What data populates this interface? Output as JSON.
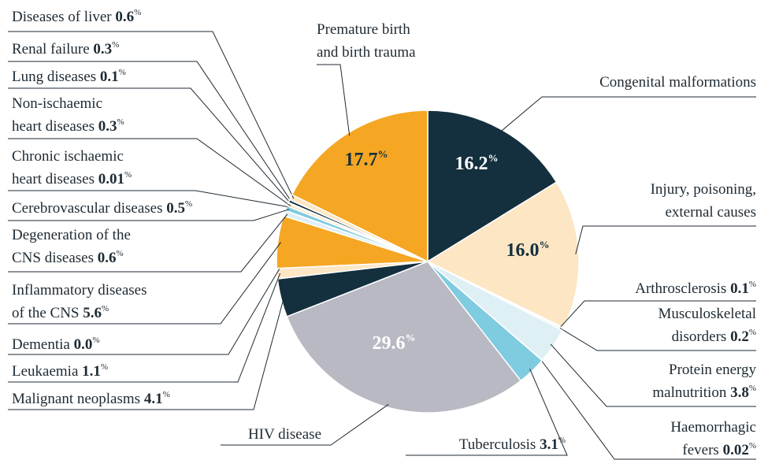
{
  "chart_data": {
    "type": "pie",
    "categories": [
      [
        "Congenital malformations"
      ],
      [
        "Injury, poisoning,",
        "external causes"
      ],
      [
        "Arthrosclerosis"
      ],
      [
        "Musculoskeletal",
        "disorders"
      ],
      [
        "Protein energy",
        "malnutrition"
      ],
      [
        "Haemorrhagic",
        "fevers"
      ],
      [
        "Tuberculosis"
      ],
      [
        "HIV disease"
      ],
      [
        "Malignant neoplasms"
      ],
      [
        "Leukaemia"
      ],
      [
        "Dementia"
      ],
      [
        "Inflammatory diseases",
        "of the CNS"
      ],
      [
        "Degeneration of the",
        "CNS diseases"
      ],
      [
        "Cerebrovascular diseases"
      ],
      [
        "Chronic ischaemic",
        "heart diseases"
      ],
      [
        "Non-ischaemic",
        "heart diseases"
      ],
      [
        "Lung diseases"
      ],
      [
        "Renal failure"
      ],
      [
        "Diseases of liver"
      ],
      [
        "Premature birth",
        "and birth trauma"
      ]
    ],
    "values": [
      16.2,
      16.0,
      0.1,
      0.2,
      3.8,
      0.02,
      3.1,
      29.6,
      4.1,
      1.1,
      0.0,
      5.6,
      0.6,
      0.5,
      0.01,
      0.3,
      0.1,
      0.3,
      0.6,
      17.7
    ],
    "value_labels": [
      "16.2",
      "16.0",
      "0.1",
      "0.2",
      "3.8",
      "0.02",
      "3.1",
      "29.6",
      "4.1",
      "1.1",
      "0.0",
      "5.6",
      "0.6",
      "0.5",
      "0.01",
      "0.3",
      "0.1",
      "0.3",
      "0.6",
      "17.7"
    ],
    "unit": "%",
    "colors": [
      "#14303f",
      "#fde6c4",
      "#f5a623",
      "#dff0f5",
      "#dff0f5",
      "#7fcbe0",
      "#7fcbe0",
      "#b8b9c2",
      "#14303f",
      "#fde6c4",
      "#f5a623",
      "#f5a623",
      "#dff0f5",
      "#7fcbe0",
      "#b8b9c2",
      "#fde6c4",
      "#f5a623",
      "#14303f",
      "#fde6c4",
      "#f5a623"
    ]
  }
}
